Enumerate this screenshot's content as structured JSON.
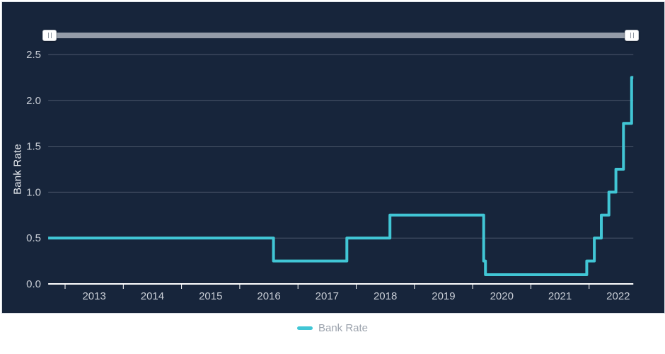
{
  "colors": {
    "panel_background": "#17253B",
    "panel_border": "#D8DDE3",
    "accent_line": "#41C6D5",
    "slider_track": "#949CA8",
    "grid_line": "#4D586C",
    "axis_line": "#FFFFFF",
    "tick_label": "#C8CDD5",
    "y_axis_title": "#E9ECF0",
    "legend_text": "#9CA3AD"
  },
  "slider": {
    "type": "range",
    "start_position": "min",
    "end_position": "max"
  },
  "legend": {
    "label": "Bank Rate",
    "marker_color": "#41C6D5"
  },
  "chart_data": {
    "type": "line",
    "step": "left",
    "title": "",
    "xlabel": "",
    "ylabel": "Bank Rate",
    "xlim": [
      2012.71,
      2022.76
    ],
    "ylim": [
      0,
      2.5
    ],
    "grid": "horizontal",
    "legend_position": "bottom-center",
    "y_ticks": [
      {
        "v": 0.0,
        "label": "0.0"
      },
      {
        "v": 0.5,
        "label": "0.5"
      },
      {
        "v": 1.0,
        "label": "1.0"
      },
      {
        "v": 1.5,
        "label": "1.5"
      },
      {
        "v": 2.0,
        "label": "2.0"
      },
      {
        "v": 2.5,
        "label": "2.5"
      }
    ],
    "x_ticks": [
      {
        "v": 2013,
        "label": "2013"
      },
      {
        "v": 2014,
        "label": "2014"
      },
      {
        "v": 2015,
        "label": "2015"
      },
      {
        "v": 2016,
        "label": "2016"
      },
      {
        "v": 2017,
        "label": "2017"
      },
      {
        "v": 2018,
        "label": "2018"
      },
      {
        "v": 2019,
        "label": "2019"
      },
      {
        "v": 2020,
        "label": "2020"
      },
      {
        "v": 2021,
        "label": "2021"
      },
      {
        "v": 2022,
        "label": "2022"
      }
    ],
    "series": [
      {
        "name": "Bank Rate",
        "color": "#41C6D5",
        "changes": [
          {
            "x": 2012.71,
            "rate": 0.5
          },
          {
            "x": 2016.58,
            "rate": 0.25
          },
          {
            "x": 2017.84,
            "rate": 0.5
          },
          {
            "x": 2018.58,
            "rate": 0.75
          },
          {
            "x": 2020.19,
            "rate": 0.25
          },
          {
            "x": 2020.22,
            "rate": 0.1
          },
          {
            "x": 2021.96,
            "rate": 0.25
          },
          {
            "x": 2022.09,
            "rate": 0.5
          },
          {
            "x": 2022.21,
            "rate": 0.75
          },
          {
            "x": 2022.34,
            "rate": 1.0
          },
          {
            "x": 2022.46,
            "rate": 1.25
          },
          {
            "x": 2022.59,
            "rate": 1.75
          },
          {
            "x": 2022.73,
            "rate": 2.25
          }
        ],
        "x_end": 2022.76
      }
    ]
  }
}
